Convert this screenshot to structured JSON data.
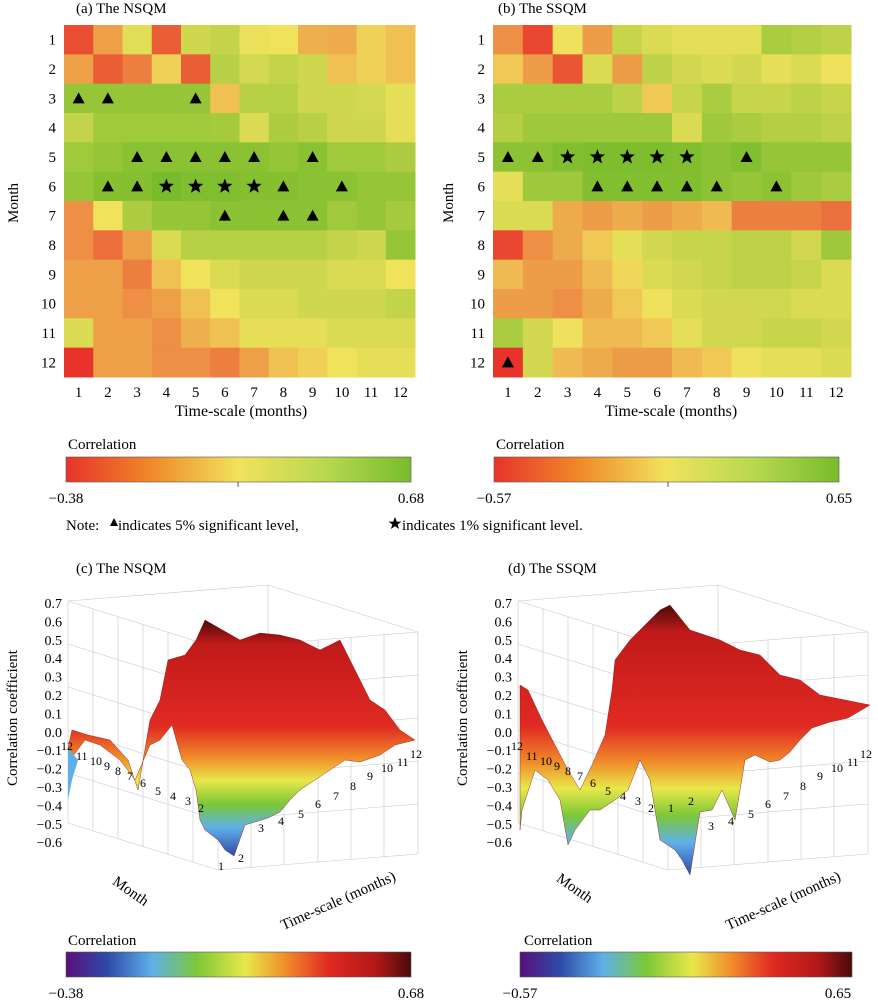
{
  "panels_top": [
    {
      "title": "(a) The NSQM",
      "ylabel": "Month",
      "xlabel": "Time-scale (months)",
      "x_ticks": [
        "1",
        "2",
        "3",
        "4",
        "5",
        "6",
        "7",
        "8",
        "9",
        "10",
        "11",
        "12"
      ],
      "y_ticks": [
        "1",
        "2",
        "3",
        "4",
        "5",
        "6",
        "7",
        "8",
        "9",
        "10",
        "11",
        "12"
      ],
      "colorbar_label": "Correlation",
      "colorbar_min": "−0.38",
      "colorbar_max": "0.68"
    },
    {
      "title": "(b) The SSQM",
      "ylabel": "Month",
      "xlabel": "Time-scale (months)",
      "x_ticks": [
        "1",
        "2",
        "3",
        "4",
        "5",
        "6",
        "7",
        "8",
        "9",
        "10",
        "11",
        "12"
      ],
      "y_ticks": [
        "1",
        "2",
        "3",
        "4",
        "5",
        "6",
        "7",
        "8",
        "9",
        "10",
        "11",
        "12"
      ],
      "colorbar_label": "Correlation",
      "colorbar_min": "−0.57",
      "colorbar_max": "0.65"
    }
  ],
  "note": {
    "prefix": "Note: ",
    "tri_text": " indicates 5% significant level, ",
    "star_text": " indicates 1% significant level."
  },
  "panels_bottom": [
    {
      "title": "(c) The NSQM",
      "zlabel": "Correlation coefficient",
      "month_label": "Month",
      "timescale_label": "Time-scale (months)",
      "z_ticks": [
        "0.7",
        "0.6",
        "0.5",
        "0.4",
        "0.3",
        "0.2",
        "0.1",
        "0.0",
        "−0.1",
        "−0.2",
        "−0.3",
        "−0.4",
        "−0.5",
        "−0.6"
      ],
      "colorbar_label": "Correlation",
      "colorbar_min": "−0.38",
      "colorbar_max": "0.68"
    },
    {
      "title": "(d) The SSQM",
      "zlabel": "Correlation coefficient",
      "month_label": "Month",
      "timescale_label": "Time-scale (months)",
      "z_ticks": [
        "0.7",
        "0.6",
        "0.5",
        "0.4",
        "0.3",
        "0.2",
        "0.1",
        "0.0",
        "−0.1",
        "−0.2",
        "−0.3",
        "−0.4",
        "−0.5",
        "−0.6"
      ],
      "colorbar_label": "Correlation",
      "colorbar_min": "−0.57",
      "colorbar_max": "0.65"
    }
  ],
  "colors": {
    "heat_low": "#e8332a",
    "heat_mid": "#f1e25c",
    "heat_high": "#78bc2c",
    "spectral": [
      "#5a0f7a",
      "#2e4aa8",
      "#5fb0e8",
      "#7cc837",
      "#e8e84a",
      "#f08a2a",
      "#e02a22",
      "#b01818",
      "#4a0a0a"
    ]
  },
  "chart_data": [
    {
      "type": "heatmap",
      "title": "(a) The NSQM",
      "xlabel": "Time-scale (months)",
      "ylabel": "Month",
      "x": [
        1,
        2,
        3,
        4,
        5,
        6,
        7,
        8,
        9,
        10,
        11,
        12
      ],
      "y": [
        1,
        2,
        3,
        4,
        5,
        6,
        7,
        8,
        9,
        10,
        11,
        12
      ],
      "vmin": -0.38,
      "vmax": 0.68,
      "values": [
        [
          -0.3,
          -0.05,
          0.22,
          -0.25,
          0.3,
          0.35,
          0.18,
          0.15,
          0.0,
          -0.02,
          0.1,
          0.05
        ],
        [
          -0.05,
          -0.25,
          -0.15,
          0.1,
          -0.25,
          0.4,
          0.28,
          0.35,
          0.3,
          0.05,
          0.1,
          0.05
        ],
        [
          0.55,
          0.55,
          0.55,
          0.55,
          0.55,
          0.05,
          0.4,
          0.4,
          0.3,
          0.3,
          0.28,
          0.2
        ],
        [
          0.35,
          0.5,
          0.5,
          0.5,
          0.5,
          0.48,
          0.25,
          0.45,
          0.4,
          0.3,
          0.3,
          0.2
        ],
        [
          0.5,
          0.55,
          0.6,
          0.6,
          0.6,
          0.6,
          0.6,
          0.55,
          0.6,
          0.5,
          0.5,
          0.45
        ],
        [
          0.55,
          0.62,
          0.62,
          0.68,
          0.65,
          0.65,
          0.62,
          0.62,
          0.6,
          0.6,
          0.55,
          0.55
        ],
        [
          -0.1,
          0.15,
          0.45,
          0.55,
          0.55,
          0.6,
          0.6,
          0.6,
          0.6,
          0.5,
          0.55,
          0.48
        ],
        [
          -0.1,
          -0.2,
          -0.05,
          0.25,
          0.4,
          0.4,
          0.4,
          0.4,
          0.4,
          0.35,
          0.3,
          0.55
        ],
        [
          -0.05,
          -0.05,
          -0.15,
          0.05,
          0.15,
          0.25,
          0.3,
          0.3,
          0.3,
          0.25,
          0.25,
          0.15
        ],
        [
          -0.05,
          -0.05,
          -0.1,
          -0.05,
          0.05,
          0.15,
          0.25,
          0.25,
          0.3,
          0.3,
          0.3,
          0.35
        ],
        [
          0.25,
          -0.05,
          -0.05,
          -0.1,
          0.0,
          0.05,
          0.2,
          0.2,
          0.2,
          0.25,
          0.25,
          0.25
        ],
        [
          -0.38,
          -0.05,
          -0.05,
          -0.1,
          -0.1,
          -0.15,
          -0.05,
          0.05,
          0.1,
          0.15,
          0.2,
          0.2
        ]
      ],
      "significance_5pct": [
        [
          3,
          1
        ],
        [
          3,
          2
        ],
        [
          3,
          5
        ],
        [
          5,
          3
        ],
        [
          5,
          4
        ],
        [
          5,
          5
        ],
        [
          5,
          6
        ],
        [
          5,
          7
        ],
        [
          5,
          9
        ],
        [
          6,
          2
        ],
        [
          6,
          3
        ],
        [
          6,
          8
        ],
        [
          6,
          10
        ],
        [
          7,
          6
        ],
        [
          7,
          8
        ],
        [
          7,
          9
        ]
      ],
      "significance_1pct": [
        [
          6,
          4
        ],
        [
          6,
          5
        ],
        [
          6,
          6
        ],
        [
          6,
          7
        ]
      ],
      "significance_encoding": "[month, time-scale]"
    },
    {
      "type": "heatmap",
      "title": "(b) The SSQM",
      "xlabel": "Time-scale (months)",
      "ylabel": "Month",
      "x": [
        1,
        2,
        3,
        4,
        5,
        6,
        7,
        8,
        9,
        10,
        11,
        12
      ],
      "y": [
        1,
        2,
        3,
        4,
        5,
        6,
        7,
        8,
        9,
        10,
        11,
        12
      ],
      "vmin": -0.57,
      "vmax": 0.65,
      "values": [
        [
          -0.25,
          -0.5,
          0.05,
          -0.2,
          0.25,
          0.15,
          0.1,
          0.1,
          0.1,
          0.4,
          0.35,
          0.3
        ],
        [
          -0.05,
          -0.2,
          -0.45,
          0.15,
          -0.2,
          0.3,
          0.2,
          0.15,
          0.2,
          0.1,
          0.15,
          0.05
        ],
        [
          0.4,
          0.4,
          0.4,
          0.4,
          0.3,
          -0.05,
          0.25,
          0.4,
          0.25,
          0.25,
          0.3,
          0.25
        ],
        [
          0.35,
          0.45,
          0.45,
          0.45,
          0.45,
          0.45,
          0.15,
          0.45,
          0.4,
          0.35,
          0.35,
          0.3
        ],
        [
          0.55,
          0.55,
          0.6,
          0.62,
          0.62,
          0.62,
          0.6,
          0.55,
          0.6,
          0.5,
          0.5,
          0.5
        ],
        [
          0.1,
          0.45,
          0.45,
          0.6,
          0.6,
          0.6,
          0.6,
          0.55,
          0.5,
          0.55,
          0.45,
          0.4
        ],
        [
          0.15,
          0.15,
          -0.15,
          -0.2,
          -0.15,
          -0.2,
          -0.15,
          -0.1,
          -0.3,
          -0.3,
          -0.3,
          -0.35
        ],
        [
          -0.5,
          -0.25,
          -0.15,
          -0.05,
          0.1,
          0.2,
          0.25,
          0.25,
          0.3,
          0.3,
          0.2,
          0.45
        ],
        [
          -0.1,
          -0.2,
          -0.2,
          -0.1,
          0.0,
          0.15,
          0.2,
          0.25,
          0.3,
          0.3,
          0.25,
          0.15
        ],
        [
          -0.2,
          -0.2,
          -0.25,
          -0.15,
          -0.05,
          0.05,
          0.15,
          0.2,
          0.2,
          0.2,
          0.15,
          0.15
        ],
        [
          0.4,
          0.2,
          0.05,
          -0.1,
          -0.1,
          -0.05,
          0.1,
          0.2,
          0.2,
          0.25,
          0.25,
          0.2
        ],
        [
          -0.57,
          0.2,
          -0.1,
          -0.15,
          -0.2,
          -0.2,
          -0.1,
          -0.05,
          0.05,
          0.1,
          0.1,
          0.15
        ]
      ],
      "significance_5pct": [
        [
          5,
          1
        ],
        [
          5,
          2
        ],
        [
          5,
          9
        ],
        [
          6,
          4
        ],
        [
          6,
          5
        ],
        [
          6,
          6
        ],
        [
          6,
          7
        ],
        [
          6,
          8
        ],
        [
          6,
          10
        ],
        [
          12,
          1
        ]
      ],
      "significance_1pct": [
        [
          5,
          3
        ],
        [
          5,
          4
        ],
        [
          5,
          5
        ],
        [
          5,
          6
        ],
        [
          5,
          7
        ]
      ],
      "significance_encoding": "[month, time-scale]"
    },
    {
      "type": "surface3d",
      "title": "(c) The NSQM",
      "zlabel": "Correlation coefficient",
      "xlabel": "Time-scale (months)",
      "ylabel": "Month",
      "zlim": [
        -0.6,
        0.7
      ],
      "note": "3-D surface of the same correlation matrix as panel (a)"
    },
    {
      "type": "surface3d",
      "title": "(d) The SSQM",
      "zlabel": "Correlation coefficient",
      "xlabel": "Time-scale (months)",
      "ylabel": "Month",
      "zlim": [
        -0.6,
        0.7
      ],
      "note": "3-D surface of the same correlation matrix as panel (b)"
    }
  ]
}
